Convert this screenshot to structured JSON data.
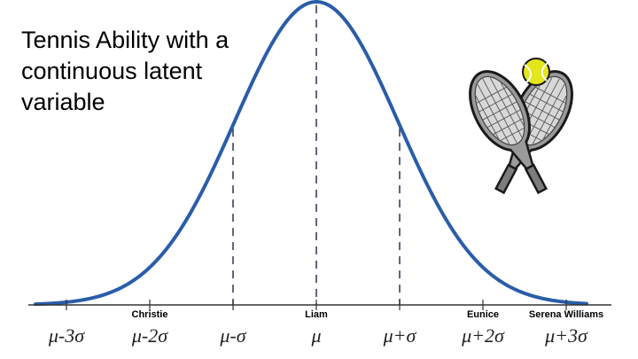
{
  "title": "Tennis Ability with a continuous latent variable",
  "colors": {
    "curve": "#2a5da9",
    "axis": "#333333",
    "dashed": "#3d3d5c"
  },
  "icon": "tennis-rackets-ball-icon",
  "axis": {
    "ticks": [
      {
        "label": "μ-3σ",
        "sigma": -3
      },
      {
        "label": "μ-2σ",
        "sigma": -2
      },
      {
        "label": "μ-σ",
        "sigma": -1
      },
      {
        "label": "μ",
        "sigma": 0
      },
      {
        "label": "μ+σ",
        "sigma": 1
      },
      {
        "label": "μ+2σ",
        "sigma": 2
      },
      {
        "label": "μ+3σ",
        "sigma": 3
      }
    ],
    "dashed_at_sigma": [
      -1,
      0,
      1
    ]
  },
  "people": [
    {
      "name": "Christie",
      "sigma": -2
    },
    {
      "name": "Liam",
      "sigma": 0
    },
    {
      "name": "Eunice",
      "sigma": 2
    },
    {
      "name": "Serena Williams",
      "sigma": 3
    }
  ]
}
